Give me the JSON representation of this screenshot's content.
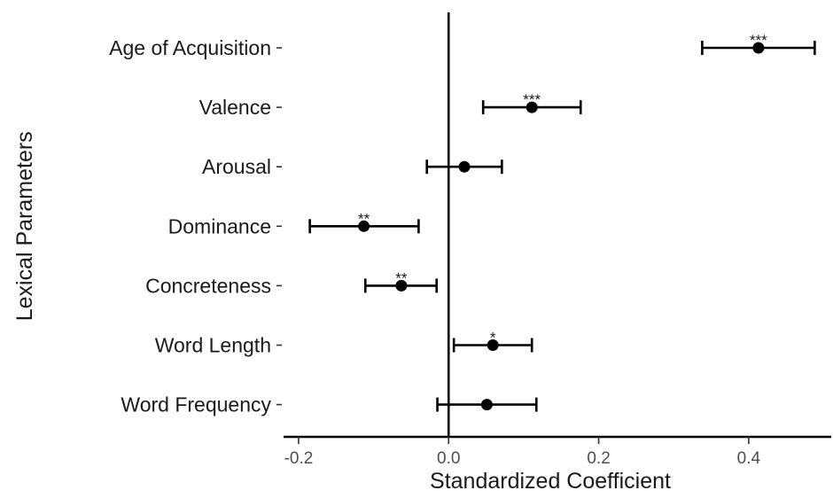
{
  "chart_data": {
    "type": "scatter",
    "subtype": "coefficient-plot-with-error-bars",
    "title": "",
    "xlabel": "Standardized Coefficient",
    "ylabel": "Lexical Parameters",
    "xlim": [
      -0.22,
      0.51
    ],
    "xticks": [
      -0.2,
      0.0,
      0.2,
      0.4
    ],
    "xtick_labels": [
      "-0.2",
      "0.0",
      "0.2",
      "0.4"
    ],
    "reference_line_x": 0,
    "grid": false,
    "legend": "none",
    "categories": [
      "Age of Acquisition",
      "Valence",
      "Arousal",
      "Dominance",
      "Concreteness",
      "Word Length",
      "Word Frequency"
    ],
    "estimates": [
      0.413,
      0.111,
      0.021,
      -0.113,
      -0.063,
      0.059,
      0.051
    ],
    "ci_low": [
      0.338,
      0.046,
      -0.029,
      -0.185,
      -0.111,
      0.007,
      -0.015
    ],
    "ci_high": [
      0.488,
      0.176,
      0.071,
      -0.04,
      -0.016,
      0.111,
      0.117
    ],
    "significance": [
      "***",
      "***",
      "",
      "**",
      "**",
      "*",
      ""
    ]
  }
}
